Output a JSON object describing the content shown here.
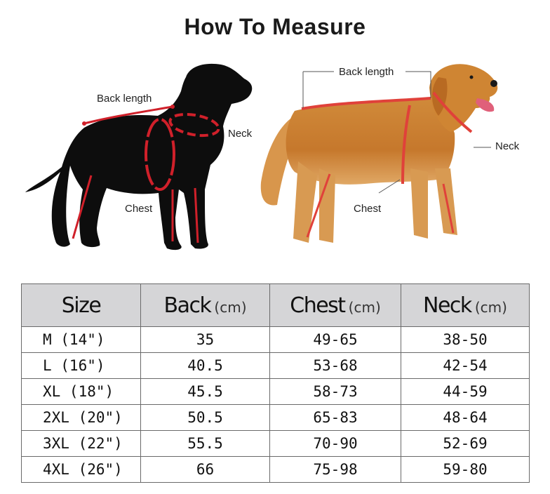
{
  "title": "How To Measure",
  "labels": {
    "back_length": "Back length",
    "neck": "Neck",
    "chest": "Chest"
  },
  "colors": {
    "measure_line": "#d0202a",
    "header_bg": "#d5d5d7"
  },
  "table": {
    "headers": [
      {
        "main": "Size",
        "unit": ""
      },
      {
        "main": "Back",
        "unit": "(cm)"
      },
      {
        "main": "Chest",
        "unit": "(cm)"
      },
      {
        "main": "Neck",
        "unit": "(cm)"
      }
    ],
    "rows": [
      [
        "M (14\")",
        "35",
        "49-65",
        "38-50"
      ],
      [
        "L (16\")",
        "40.5",
        "53-68",
        "42-54"
      ],
      [
        "XL (18\")",
        "45.5",
        "58-73",
        "44-59"
      ],
      [
        "2XL (20\")",
        "50.5",
        "65-83",
        "48-64"
      ],
      [
        "3XL (22\")",
        "55.5",
        "70-90",
        "52-69"
      ],
      [
        "4XL (26\")",
        "66",
        "75-98",
        "59-80"
      ]
    ]
  }
}
